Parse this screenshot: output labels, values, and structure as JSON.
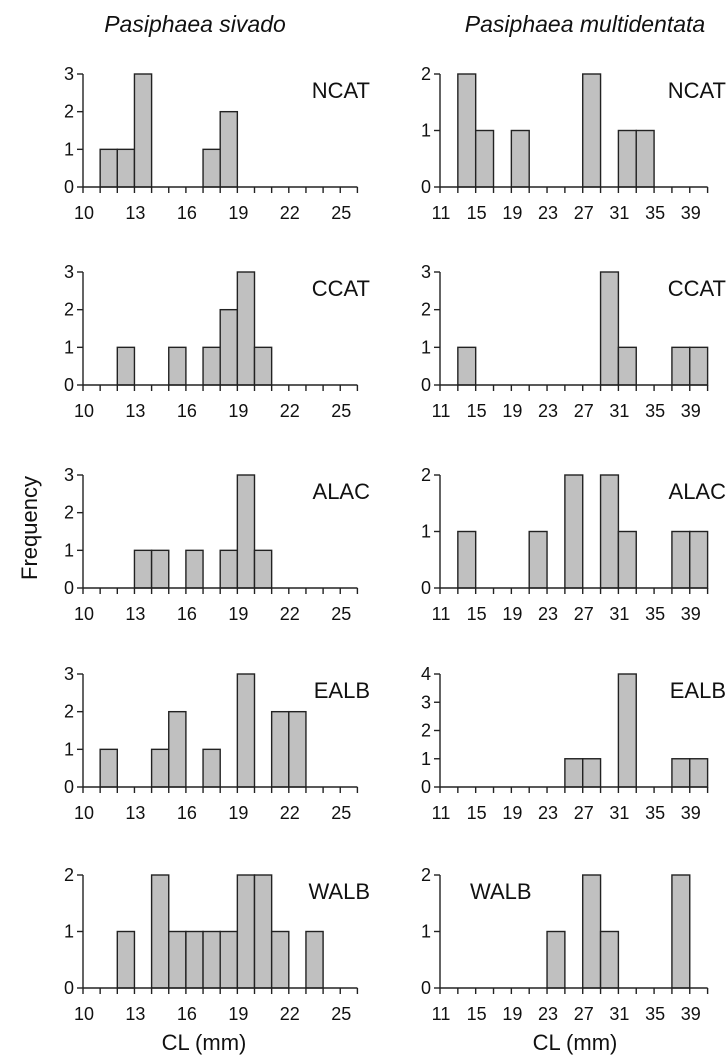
{
  "figure": {
    "ylabel": "Frequency",
    "bar_color": "#c0c0c0",
    "bar_edge_color": "#222222"
  },
  "chart_data": [
    {
      "type": "bar",
      "species": "Pasiphaea sivado",
      "region": "NCAT",
      "xlabel": "",
      "ylabel": "Frequency",
      "bin_start": 10,
      "bin_width": 1,
      "xlim": [
        10,
        26
      ],
      "xticks": [
        10,
        13,
        16,
        19,
        22,
        25
      ],
      "ylim": [
        0,
        3
      ],
      "yticks": [
        0,
        1,
        2,
        3
      ],
      "values": [
        0,
        1,
        1,
        3,
        0,
        0,
        0,
        1,
        2,
        0,
        0,
        0,
        0,
        0,
        0,
        0
      ]
    },
    {
      "type": "bar",
      "species": "Pasiphaea multidentata",
      "region": "NCAT",
      "xlabel": "",
      "ylabel": "Frequency",
      "bin_start": 11,
      "bin_width": 2,
      "xlim": [
        11,
        41
      ],
      "xticks": [
        11,
        15,
        19,
        23,
        27,
        31,
        35,
        39
      ],
      "ylim": [
        0,
        2
      ],
      "yticks": [
        0,
        1,
        2
      ],
      "values": [
        0,
        2,
        1,
        0,
        1,
        0,
        0,
        0,
        2,
        0,
        1,
        1,
        0,
        0,
        0
      ]
    },
    {
      "type": "bar",
      "species": "Pasiphaea sivado",
      "region": "CCAT",
      "xlabel": "",
      "ylabel": "Frequency",
      "bin_start": 10,
      "bin_width": 1,
      "xlim": [
        10,
        26
      ],
      "xticks": [
        10,
        13,
        16,
        19,
        22,
        25
      ],
      "ylim": [
        0,
        3
      ],
      "yticks": [
        0,
        1,
        2,
        3
      ],
      "values": [
        0,
        0,
        1,
        0,
        0,
        1,
        0,
        1,
        2,
        3,
        1,
        0,
        0,
        0,
        0,
        0
      ]
    },
    {
      "type": "bar",
      "species": "Pasiphaea multidentata",
      "region": "CCAT",
      "xlabel": "",
      "ylabel": "Frequency",
      "bin_start": 11,
      "bin_width": 2,
      "xlim": [
        11,
        41
      ],
      "xticks": [
        11,
        15,
        19,
        23,
        27,
        31,
        35,
        39
      ],
      "ylim": [
        0,
        3
      ],
      "yticks": [
        0,
        1,
        2,
        3
      ],
      "values": [
        0,
        1,
        0,
        0,
        0,
        0,
        0,
        0,
        0,
        3,
        1,
        0,
        0,
        1,
        1
      ]
    },
    {
      "type": "bar",
      "species": "Pasiphaea sivado",
      "region": "ALAC",
      "xlabel": "",
      "ylabel": "Frequency",
      "bin_start": 10,
      "bin_width": 1,
      "xlim": [
        10,
        26
      ],
      "xticks": [
        10,
        13,
        16,
        19,
        22,
        25
      ],
      "ylim": [
        0,
        3
      ],
      "yticks": [
        0,
        1,
        2,
        3
      ],
      "values": [
        0,
        0,
        0,
        1,
        1,
        0,
        1,
        0,
        1,
        3,
        1,
        0,
        0,
        0,
        0,
        0
      ]
    },
    {
      "type": "bar",
      "species": "Pasiphaea multidentata",
      "region": "ALAC",
      "xlabel": "",
      "ylabel": "Frequency",
      "bin_start": 11,
      "bin_width": 2,
      "xlim": [
        11,
        41
      ],
      "xticks": [
        11,
        15,
        19,
        23,
        27,
        31,
        35,
        39
      ],
      "ylim": [
        0,
        2
      ],
      "yticks": [
        0,
        1,
        2
      ],
      "values": [
        0,
        1,
        0,
        0,
        0,
        1,
        0,
        2,
        0,
        2,
        1,
        0,
        0,
        1,
        1
      ]
    },
    {
      "type": "bar",
      "species": "Pasiphaea sivado",
      "region": "EALB",
      "xlabel": "",
      "ylabel": "Frequency",
      "bin_start": 10,
      "bin_width": 1,
      "xlim": [
        10,
        26
      ],
      "xticks": [
        10,
        13,
        16,
        19,
        22,
        25
      ],
      "ylim": [
        0,
        3
      ],
      "yticks": [
        0,
        1,
        2,
        3
      ],
      "values": [
        0,
        1,
        0,
        0,
        1,
        2,
        0,
        1,
        0,
        3,
        0,
        2,
        2,
        0,
        0,
        0
      ]
    },
    {
      "type": "bar",
      "species": "Pasiphaea multidentata",
      "region": "EALB",
      "xlabel": "",
      "ylabel": "Frequency",
      "bin_start": 11,
      "bin_width": 2,
      "xlim": [
        11,
        41
      ],
      "xticks": [
        11,
        15,
        19,
        23,
        27,
        31,
        35,
        39
      ],
      "ylim": [
        0,
        4
      ],
      "yticks": [
        0,
        1,
        2,
        3,
        4
      ],
      "values": [
        0,
        0,
        0,
        0,
        0,
        0,
        0,
        1,
        1,
        0,
        4,
        0,
        0,
        1,
        1
      ]
    },
    {
      "type": "bar",
      "species": "Pasiphaea sivado",
      "region": "WALB",
      "xlabel": "CL (mm)",
      "ylabel": "Frequency",
      "bin_start": 10,
      "bin_width": 1,
      "xlim": [
        10,
        26
      ],
      "xticks": [
        10,
        13,
        16,
        19,
        22,
        25
      ],
      "ylim": [
        0,
        2
      ],
      "yticks": [
        0,
        1,
        2
      ],
      "values": [
        0,
        0,
        1,
        0,
        2,
        1,
        1,
        1,
        1,
        2,
        2,
        1,
        0,
        1,
        0,
        0
      ]
    },
    {
      "type": "bar",
      "species": "Pasiphaea multidentata",
      "region": "WALB",
      "xlabel": "CL (mm)",
      "ylabel": "Frequency",
      "bin_start": 11,
      "bin_width": 2,
      "xlim": [
        11,
        41
      ],
      "xticks": [
        11,
        15,
        19,
        23,
        27,
        31,
        35,
        39
      ],
      "ylim": [
        0,
        2
      ],
      "yticks": [
        0,
        1,
        2
      ],
      "values": [
        0,
        0,
        0,
        0,
        0,
        0,
        1,
        0,
        2,
        1,
        0,
        0,
        0,
        2,
        0
      ]
    }
  ]
}
